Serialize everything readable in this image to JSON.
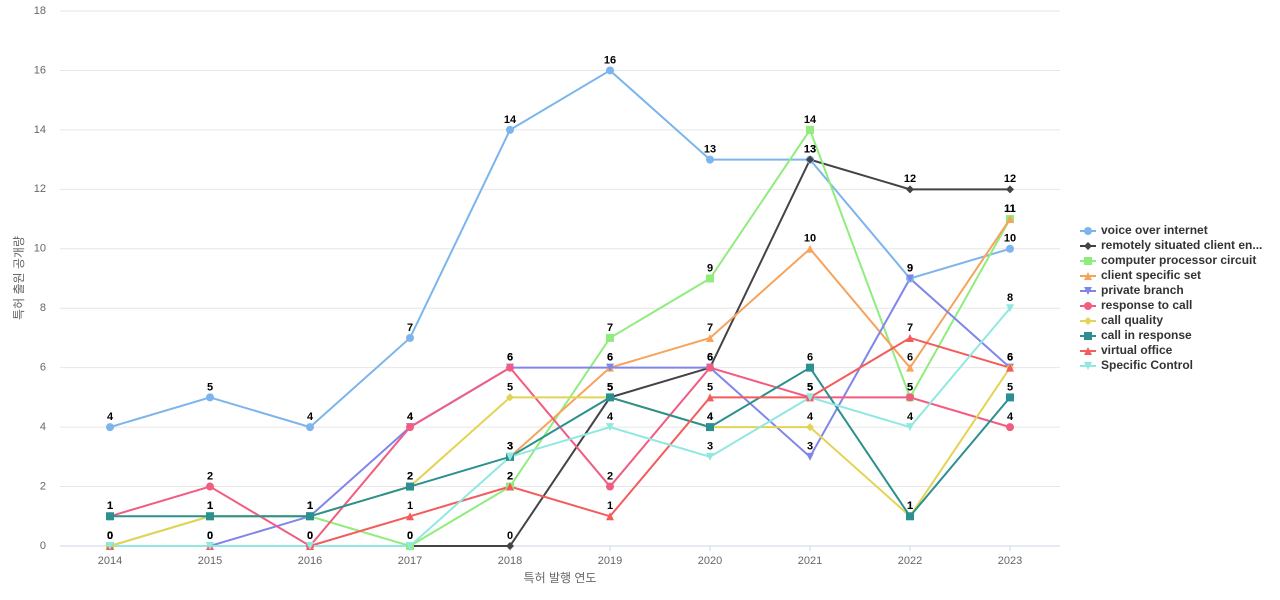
{
  "chart_data": {
    "type": "line",
    "x_label": "특허 발행 연도",
    "y_label": "특허 출원 공개량",
    "categories": [
      "2014",
      "2015",
      "2016",
      "2017",
      "2018",
      "2019",
      "2020",
      "2021",
      "2022",
      "2023"
    ],
    "ylim": [
      0,
      18
    ],
    "yticks": [
      0,
      2,
      4,
      6,
      8,
      10,
      12,
      14,
      16,
      18
    ],
    "grid": true,
    "legend": "right",
    "series": [
      {
        "name": "voice over internet",
        "color": "#7cb5ec",
        "marker": "circle",
        "values": [
          4,
          5,
          4,
          7,
          14,
          16,
          13,
          13,
          9,
          10
        ]
      },
      {
        "name": "remotely situated client en...",
        "color": "#434348",
        "marker": "diamond",
        "values": [
          null,
          null,
          null,
          0,
          0,
          5,
          6,
          13,
          12,
          12
        ]
      },
      {
        "name": "computer processor circuit",
        "color": "#90ed7d",
        "marker": "square",
        "values": [
          0,
          1,
          1,
          0,
          2,
          7,
          9,
          14,
          5,
          11
        ]
      },
      {
        "name": "client specific set",
        "color": "#f7a35c",
        "marker": "triangle",
        "values": [
          null,
          null,
          null,
          null,
          3,
          6,
          7,
          10,
          6,
          11
        ]
      },
      {
        "name": "private branch",
        "color": "#8085e9",
        "marker": "triangle-down",
        "values": [
          0,
          0,
          1,
          4,
          6,
          6,
          6,
          3,
          9,
          6
        ]
      },
      {
        "name": "response to call",
        "color": "#f15c80",
        "marker": "circle",
        "values": [
          1,
          2,
          0,
          4,
          6,
          2,
          6,
          5,
          5,
          4
        ]
      },
      {
        "name": "call quality",
        "color": "#e4d354",
        "marker": "diamond",
        "values": [
          0,
          1,
          1,
          2,
          5,
          5,
          4,
          4,
          1,
          6
        ]
      },
      {
        "name": "call in response",
        "color": "#2b908f",
        "marker": "square",
        "values": [
          1,
          1,
          1,
          2,
          3,
          5,
          4,
          6,
          1,
          5
        ]
      },
      {
        "name": "virtual office",
        "color": "#f45b5b",
        "marker": "triangle",
        "values": [
          0,
          0,
          0,
          1,
          2,
          1,
          5,
          5,
          7,
          6
        ]
      },
      {
        "name": "Specific Control",
        "color": "#91e8e1",
        "marker": "triangle-down",
        "values": [
          0,
          0,
          0,
          0,
          3,
          4,
          3,
          5,
          4,
          8
        ]
      }
    ]
  }
}
